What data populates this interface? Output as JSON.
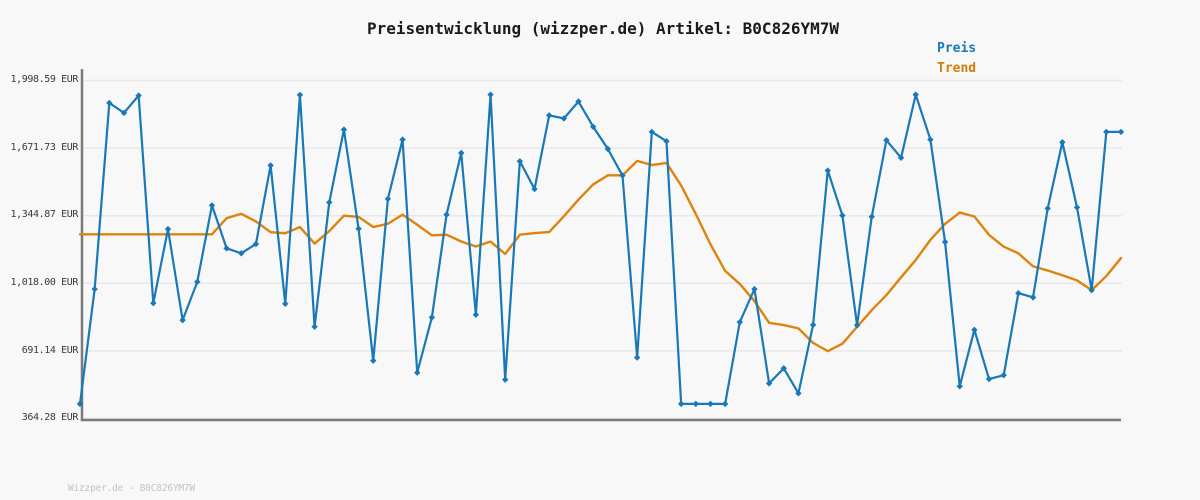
{
  "header": {
    "title": "Preisentwicklung (wizzper.de) Artikel: B0C826YM7W"
  },
  "footer": {
    "watermark": "Wizzper.de - B0C826YM7W"
  },
  "colors": {
    "preis_line": "#1878b8",
    "trend_line": "#dd830e",
    "grid": "#e8e8e8",
    "axis": "#7a7a7a",
    "background": "#f8f8f8",
    "title_text": "#1a1a1a",
    "tick_text": "#3a3a3a",
    "watermark_text": "#c3c3c3"
  },
  "chart_data": {
    "type": "line",
    "title": "Preisentwicklung (wizzper.de) Artikel: B0C826YM7W",
    "currency": "EUR",
    "xlabel": "",
    "ylabel": "",
    "x_tick_labels_visible": false,
    "ylim": [
      364.28,
      1998.59
    ],
    "grid": "horizontal",
    "legend_position": "top-right",
    "ytick_labels": [
      "1,998.59 EUR",
      "1,671.73 EUR",
      "1,344.87 EUR",
      "1,018.00 EUR",
      "691.14 EUR",
      "364.28 EUR"
    ],
    "ytick_values": [
      1998.59,
      1671.73,
      1344.87,
      1018.0,
      691.14,
      364.28
    ],
    "n_points": 72,
    "series": [
      {
        "name": "Preis",
        "color": "#1878b8",
        "marker": "diamond",
        "values": [
          435,
          990,
          1890,
          1842,
          1926,
          922,
          1280,
          840,
          1025,
          1395,
          1187,
          1163,
          1208,
          1588,
          919,
          1929,
          808,
          1409,
          1761,
          1282,
          644,
          1426,
          1713,
          586,
          853,
          1350,
          1648,
          866,
          1930,
          552,
          1608,
          1474,
          1830,
          1815,
          1897,
          1775,
          1668,
          1539,
          659,
          1750,
          1705,
          435,
          435,
          435,
          435,
          830,
          990,
          534,
          607,
          486,
          817,
          1563,
          1346,
          815,
          1340,
          1710,
          1625,
          1930,
          1713,
          1218,
          520,
          793,
          555,
          574,
          970,
          950,
          1380,
          1700,
          1385,
          985,
          1750,
          1750
        ]
      },
      {
        "name": "Trend",
        "color": "#dd830e",
        "marker": "none",
        "values": [
          1255,
          1255,
          1255,
          1255,
          1255,
          1255,
          1255,
          1255,
          1255,
          1255,
          1333,
          1354,
          1317,
          1265,
          1260,
          1290,
          1210,
          1270,
          1345,
          1339,
          1290,
          1306,
          1350,
          1301,
          1250,
          1253,
          1220,
          1196,
          1220,
          1160,
          1253,
          1261,
          1266,
          1342,
          1423,
          1496,
          1540,
          1540,
          1610,
          1590,
          1600,
          1491,
          1353,
          1207,
          1078,
          1015,
          932,
          827,
          816,
          800,
          730,
          690,
          726,
          808,
          888,
          961,
          1047,
          1131,
          1228,
          1305,
          1360,
          1341,
          1252,
          1195,
          1163,
          1100,
          1080,
          1057,
          1032,
          985,
          1053,
          1140
        ]
      }
    ]
  }
}
